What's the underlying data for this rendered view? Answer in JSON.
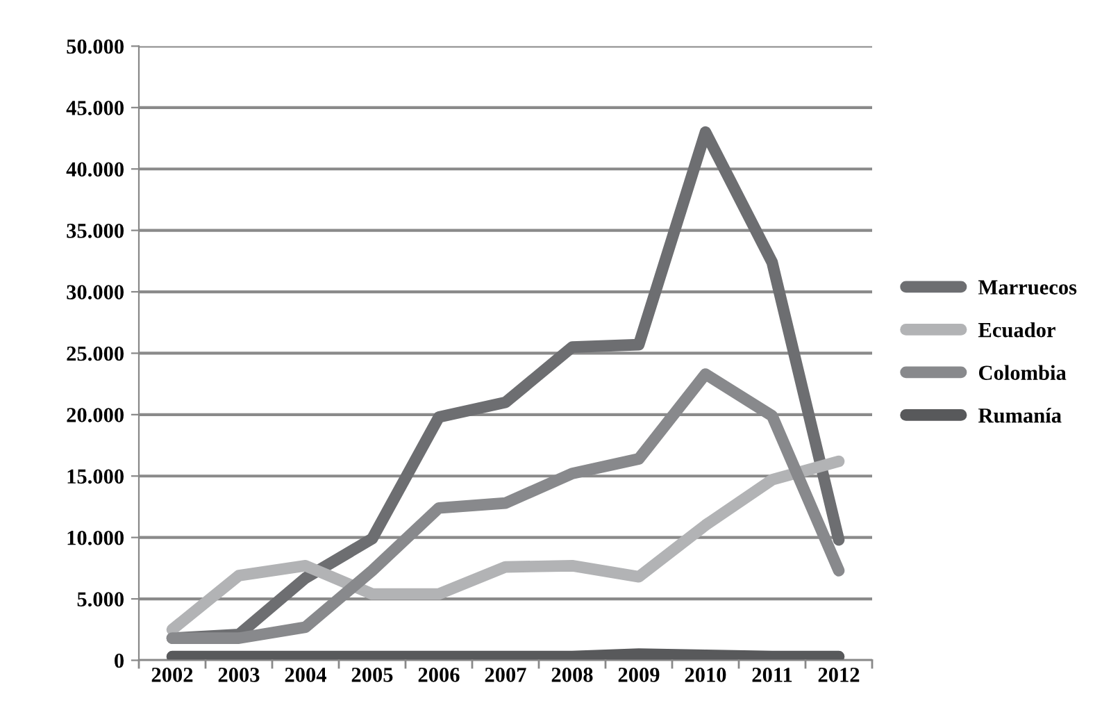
{
  "chart_data": {
    "type": "line",
    "categories": [
      "2002",
      "2003",
      "2004",
      "2005",
      "2006",
      "2007",
      "2008",
      "2009",
      "2010",
      "2011",
      "2012"
    ],
    "series": [
      {
        "name": "Marruecos",
        "color": "#6d6e71",
        "values": [
          1800,
          2100,
          6700,
          9900,
          19800,
          21000,
          25500,
          25700,
          43000,
          32400,
          9800
        ]
      },
      {
        "name": "Ecuador",
        "color": "#b2b3b5",
        "values": [
          2500,
          6900,
          7700,
          5400,
          5400,
          7600,
          7700,
          6800,
          11000,
          14700,
          16200
        ]
      },
      {
        "name": "Colombia",
        "color": "#88898c",
        "values": [
          1800,
          1800,
          2700,
          7300,
          12400,
          12800,
          15200,
          16400,
          23300,
          19900,
          7300
        ]
      },
      {
        "name": "Rumanía",
        "color": "#58595b",
        "values": [
          300,
          300,
          300,
          300,
          300,
          300,
          300,
          500,
          400,
          300,
          300
        ]
      }
    ],
    "ylim": [
      0,
      50000
    ],
    "yticks": [
      {
        "value": 0,
        "label": "0"
      },
      {
        "value": 5000,
        "label": "5.000"
      },
      {
        "value": 10000,
        "label": "10.000"
      },
      {
        "value": 15000,
        "label": "15.000"
      },
      {
        "value": 20000,
        "label": "20.000"
      },
      {
        "value": 25000,
        "label": "25.000"
      },
      {
        "value": 30000,
        "label": "30.000"
      },
      {
        "value": 35000,
        "label": "35.000"
      },
      {
        "value": 40000,
        "label": "40.000"
      },
      {
        "value": 45000,
        "label": "45.000"
      },
      {
        "value": 50000,
        "label": "50.000"
      }
    ],
    "grid": "y",
    "legend": "right",
    "marker": "none",
    "line_style": "solid"
  }
}
